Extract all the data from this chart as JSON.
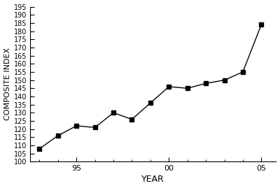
{
  "years": [
    1993,
    1994,
    1995,
    1996,
    1997,
    1998,
    1999,
    2000,
    2001,
    2002,
    2003,
    2004,
    2005
  ],
  "values": [
    108,
    116,
    122,
    121,
    130,
    126,
    136,
    146,
    145,
    148,
    150,
    155,
    184
  ],
  "xlabel": "YEAR",
  "ylabel": "COMPOSITE INDEX",
  "xlim": [
    1992.5,
    2005.8
  ],
  "ylim": [
    100,
    195
  ],
  "yticks": [
    100,
    105,
    110,
    115,
    120,
    125,
    130,
    135,
    140,
    145,
    150,
    155,
    160,
    165,
    170,
    175,
    180,
    185,
    190,
    195
  ],
  "xtick_major_positions": [
    1995,
    2000,
    2005
  ],
  "xtick_major_labels": [
    "95",
    "00",
    "05"
  ],
  "line_color": "#000000",
  "marker": "s",
  "marker_size": 4,
  "linewidth": 1.0,
  "background_color": "#ffffff",
  "ylabel_fontsize": 8,
  "xlabel_fontsize": 9,
  "tick_labelsize": 8
}
